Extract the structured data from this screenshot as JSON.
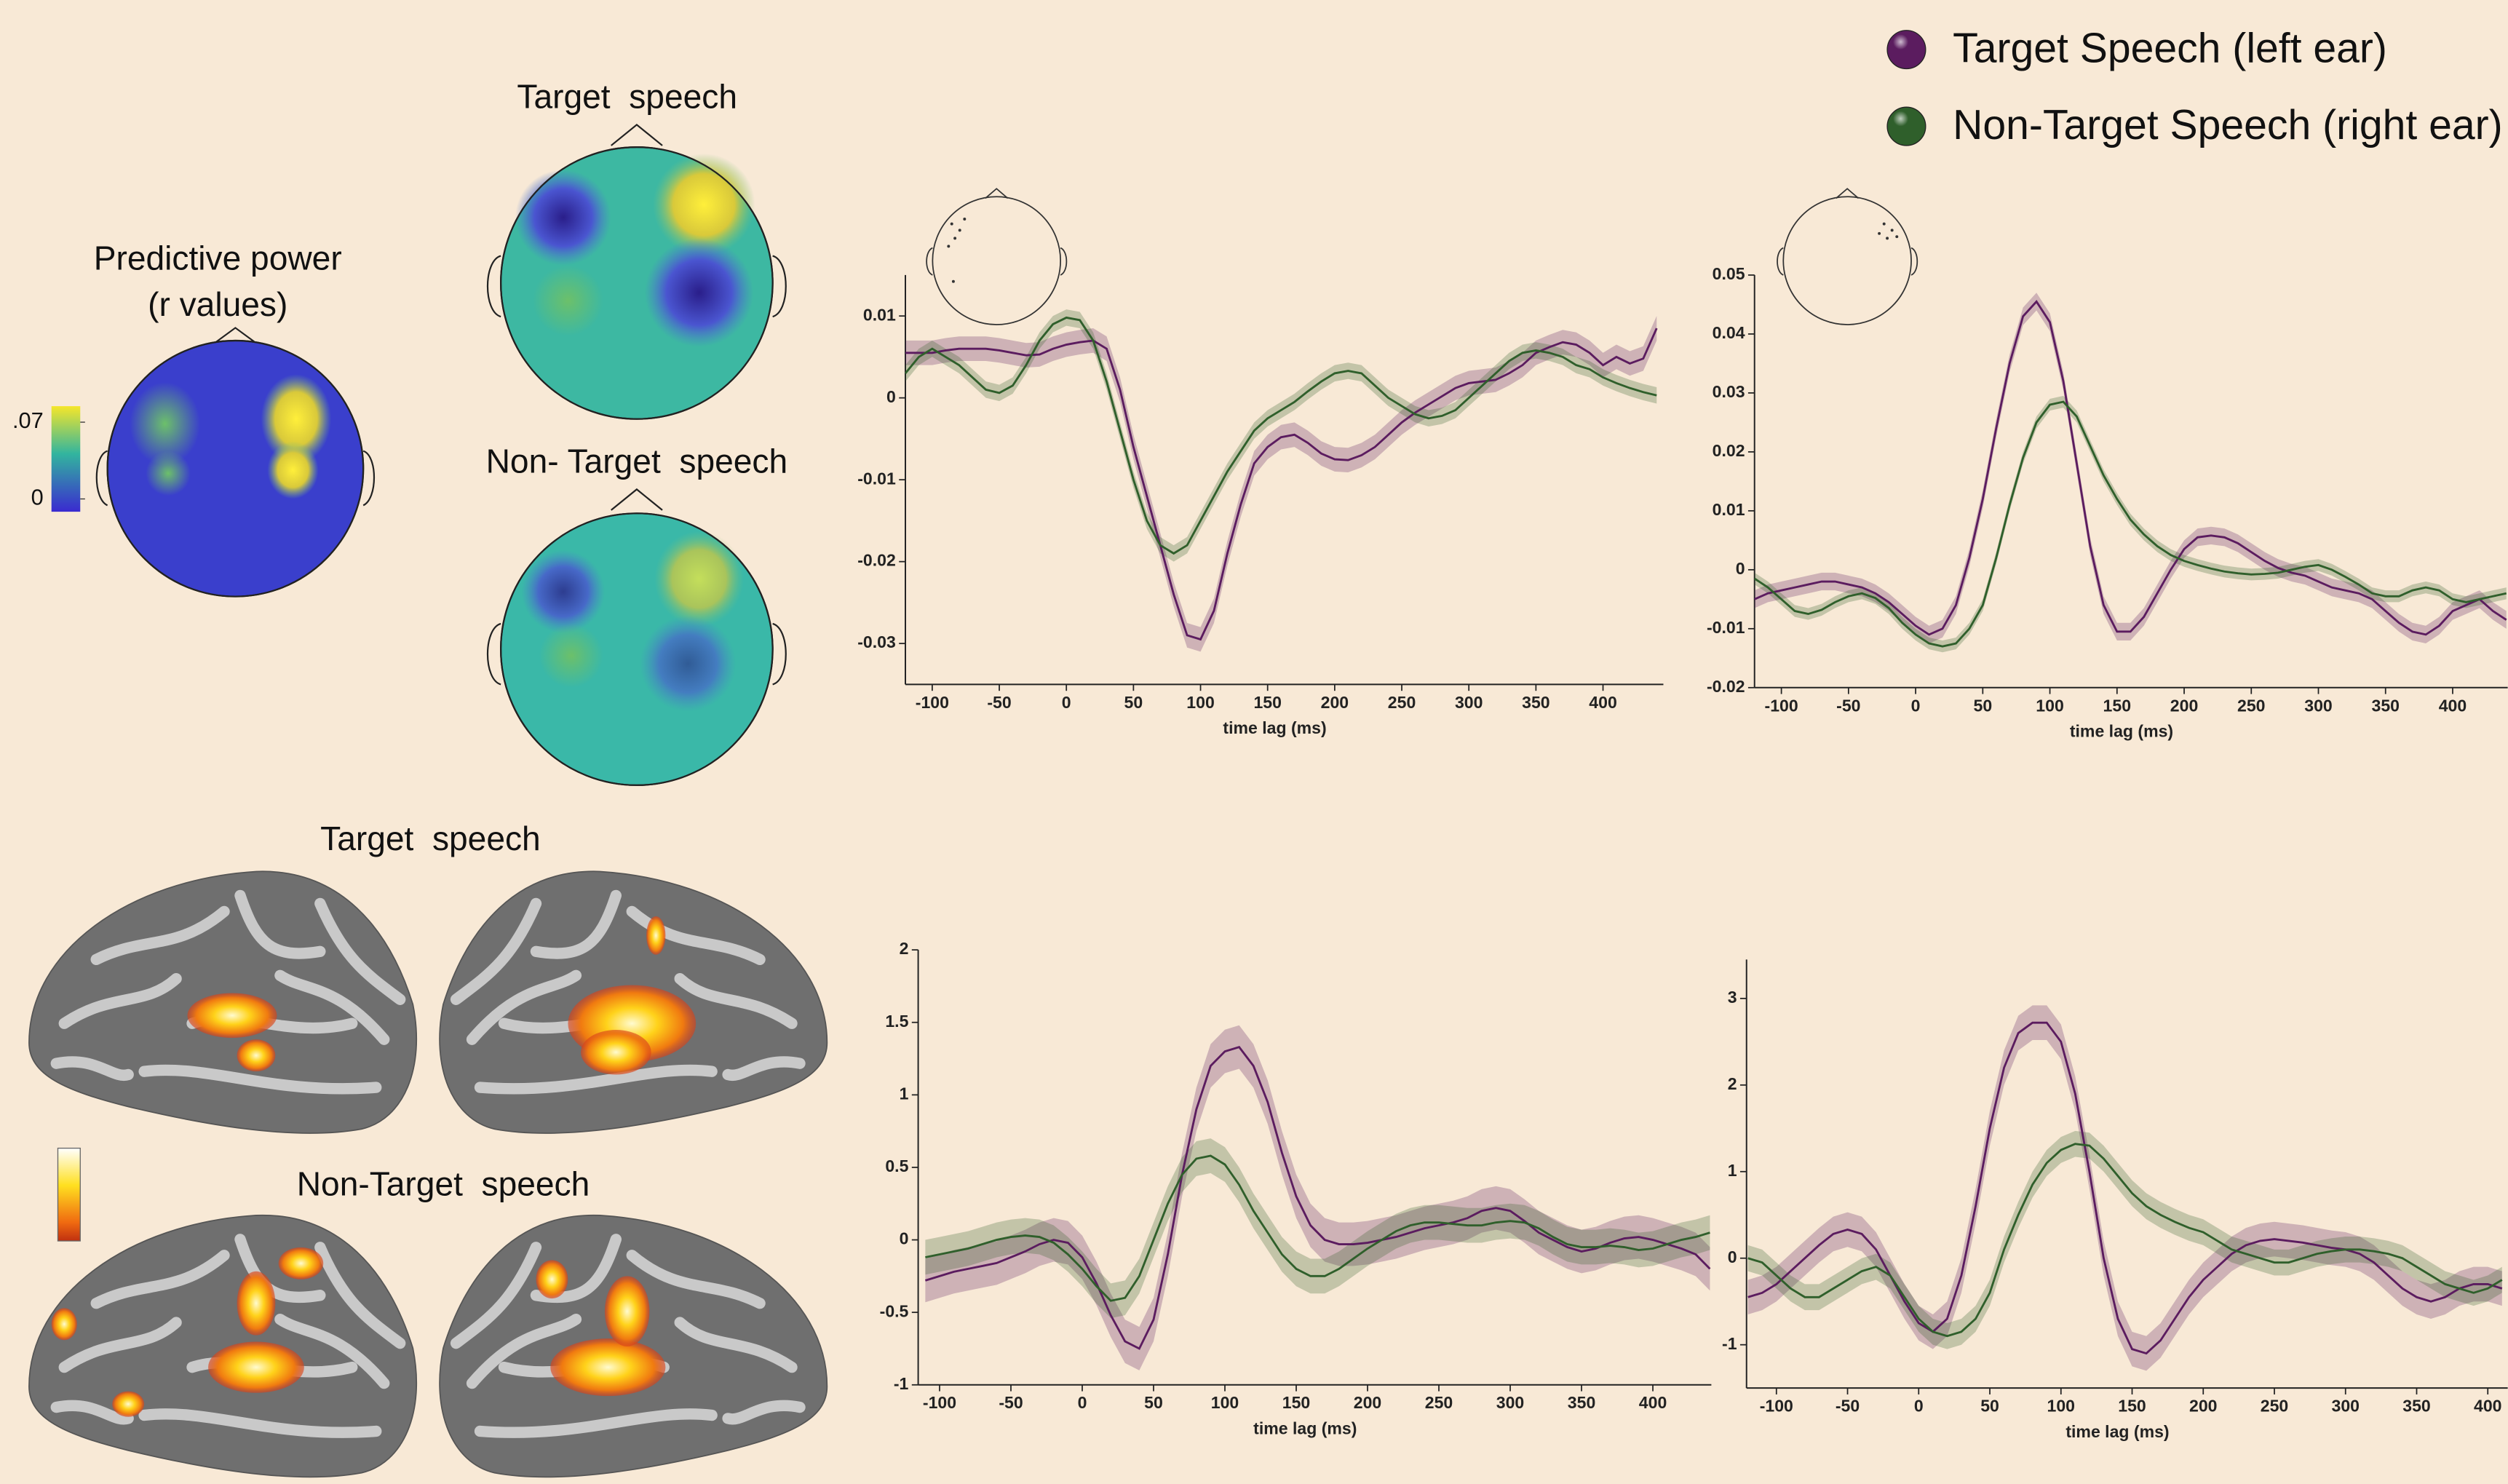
{
  "legend_position": "upper right",
  "topoplot": {
    "title": [
      "Predictive power",
      "(r values)"
    ],
    "clim": [
      0,
      0.07
    ],
    "colorbar_ticks": [
      {
        "value": 0.07,
        "label": ".07"
      },
      0
    ],
    "panels": [
      "Target  speech",
      "Non- Target  speech"
    ]
  },
  "brain_maps": {
    "panels": [
      "Target  speech",
      "Non-Target  speech"
    ]
  },
  "chart_data": [
    {
      "type": "line",
      "xlabel": "time lag (ms)",
      "xlim": [
        -120,
        445
      ],
      "ylim": [
        -0.035,
        0.015
      ],
      "xticks": [
        -100,
        -50,
        0,
        50,
        100,
        150,
        200,
        250,
        300,
        350,
        400
      ],
      "yticks": [
        0.01,
        0,
        -0.01,
        -0.02,
        -0.03
      ],
      "x": [
        -120,
        -110,
        -100,
        -90,
        -80,
        -70,
        -60,
        -50,
        -40,
        -30,
        -20,
        -10,
        0,
        10,
        20,
        30,
        40,
        50,
        60,
        70,
        80,
        90,
        100,
        110,
        120,
        130,
        140,
        150,
        160,
        170,
        180,
        190,
        200,
        210,
        220,
        230,
        240,
        250,
        260,
        270,
        280,
        290,
        300,
        310,
        320,
        330,
        340,
        350,
        360,
        370,
        380,
        390,
        400,
        410,
        420,
        430,
        440
      ],
      "series": [
        {
          "name": "Target Speech (left ear)",
          "color": "#5b1c5f",
          "error": 0.0015,
          "values": [
            0.0055,
            0.0055,
            0.0055,
            0.0058,
            0.006,
            0.006,
            0.006,
            0.0058,
            0.0055,
            0.0052,
            0.0053,
            0.006,
            0.0065,
            0.0068,
            0.007,
            0.006,
            0.001,
            -0.006,
            -0.012,
            -0.018,
            -0.024,
            -0.029,
            -0.0295,
            -0.026,
            -0.019,
            -0.013,
            -0.008,
            -0.006,
            -0.0048,
            -0.0045,
            -0.0055,
            -0.0068,
            -0.0075,
            -0.0076,
            -0.007,
            -0.006,
            -0.0045,
            -0.003,
            -0.0018,
            -0.0008,
            0.0002,
            0.0012,
            0.0018,
            0.002,
            0.0022,
            0.003,
            0.004,
            0.0055,
            0.0062,
            0.0068,
            0.0065,
            0.0055,
            0.004,
            0.005,
            0.0042,
            0.0048,
            0.0085
          ]
        },
        {
          "name": "Non-Target Speech (right ear)",
          "color": "#2f5f2b",
          "error": 0.001,
          "values": [
            0.003,
            0.005,
            0.006,
            0.005,
            0.004,
            0.0025,
            0.001,
            0.0006,
            0.0015,
            0.004,
            0.007,
            0.009,
            0.0098,
            0.0095,
            0.007,
            0.002,
            -0.004,
            -0.01,
            -0.015,
            -0.018,
            -0.019,
            -0.018,
            -0.015,
            -0.012,
            -0.009,
            -0.0065,
            -0.004,
            -0.0025,
            -0.0015,
            -0.0005,
            0.0008,
            0.002,
            0.003,
            0.0033,
            0.003,
            0.0015,
            0,
            -0.001,
            -0.002,
            -0.0025,
            -0.0022,
            -0.0015,
            0,
            0.0015,
            0.003,
            0.0045,
            0.0055,
            0.0058,
            0.0055,
            0.005,
            0.004,
            0.0035,
            0.0025,
            0.0018,
            0.0012,
            0.0007,
            0.0003
          ]
        }
      ]
    },
    {
      "type": "line",
      "xlabel": "time lag (ms)",
      "xlim": [
        -120,
        441
      ],
      "ylim": [
        -0.02,
        0.05
      ],
      "xticks": [
        -100,
        -50,
        0,
        50,
        100,
        150,
        200,
        250,
        300,
        350,
        400
      ],
      "yticks": [
        0.05,
        0.04,
        0.03,
        0.02,
        0.01,
        0,
        -0.01,
        -0.02
      ],
      "x": [
        -120,
        -110,
        -100,
        -90,
        -80,
        -70,
        -60,
        -50,
        -40,
        -30,
        -20,
        -10,
        0,
        10,
        20,
        30,
        40,
        50,
        60,
        70,
        80,
        90,
        100,
        110,
        120,
        130,
        140,
        150,
        160,
        170,
        180,
        190,
        200,
        210,
        220,
        230,
        240,
        250,
        260,
        270,
        280,
        290,
        300,
        310,
        320,
        330,
        340,
        350,
        360,
        370,
        380,
        390,
        400,
        410,
        420,
        430,
        440
      ],
      "series": [
        {
          "color": "#5b1c5f",
          "error": 0.0015,
          "values": [
            -0.005,
            -0.004,
            -0.0035,
            -0.003,
            -0.0025,
            -0.002,
            -0.002,
            -0.0025,
            -0.003,
            -0.004,
            -0.0055,
            -0.0075,
            -0.0095,
            -0.011,
            -0.01,
            -0.006,
            0.002,
            0.012,
            0.024,
            0.035,
            0.043,
            0.0455,
            0.042,
            0.032,
            0.018,
            0.004,
            -0.006,
            -0.0105,
            -0.0105,
            -0.008,
            -0.004,
            0,
            0.0035,
            0.0055,
            0.0058,
            0.0055,
            0.0045,
            0.003,
            0.0015,
            0.0003,
            -0.0005,
            -0.001,
            -0.002,
            -0.003,
            -0.0035,
            -0.004,
            -0.005,
            -0.007,
            -0.009,
            -0.0105,
            -0.011,
            -0.0095,
            -0.007,
            -0.006,
            -0.005,
            -0.007,
            -0.0085
          ]
        },
        {
          "color": "#2f5f2b",
          "error": 0.001,
          "values": [
            -0.0015,
            -0.003,
            -0.005,
            -0.007,
            -0.0075,
            -0.0068,
            -0.0055,
            -0.0045,
            -0.004,
            -0.0048,
            -0.0065,
            -0.009,
            -0.011,
            -0.0125,
            -0.013,
            -0.0125,
            -0.01,
            -0.006,
            0.002,
            0.011,
            0.019,
            0.025,
            0.028,
            0.0285,
            0.026,
            0.021,
            0.016,
            0.012,
            0.0085,
            0.006,
            0.004,
            0.0025,
            0.0015,
            0.0008,
            0.0002,
            -0.0003,
            -0.0006,
            -0.0008,
            -0.0007,
            -0.0005,
            0,
            0.0005,
            0.0008,
            0,
            -0.0012,
            -0.0025,
            -0.004,
            -0.0045,
            -0.0045,
            -0.0035,
            -0.003,
            -0.0035,
            -0.005,
            -0.0055,
            -0.005,
            -0.0045,
            -0.004
          ]
        }
      ]
    },
    {
      "type": "line",
      "xlabel": "time lag (ms)",
      "xlim": [
        -115,
        441
      ],
      "ylim": [
        -1,
        2
      ],
      "xticks": [
        -100,
        -50,
        0,
        50,
        100,
        150,
        200,
        250,
        300,
        350,
        400
      ],
      "yticks": [
        2,
        1.5,
        1,
        0.5,
        0,
        -0.5,
        -1
      ],
      "x": [
        -110,
        -100,
        -90,
        -80,
        -70,
        -60,
        -50,
        -40,
        -30,
        -20,
        -10,
        0,
        10,
        20,
        30,
        40,
        50,
        60,
        70,
        80,
        90,
        100,
        110,
        120,
        130,
        140,
        150,
        160,
        170,
        180,
        190,
        200,
        210,
        220,
        230,
        240,
        250,
        260,
        270,
        280,
        290,
        300,
        310,
        320,
        330,
        340,
        350,
        360,
        370,
        380,
        390,
        400,
        410,
        420,
        430,
        440
      ],
      "series": [
        {
          "color": "#5b1c5f",
          "error": 0.15,
          "values": [
            -0.28,
            -0.25,
            -0.22,
            -0.2,
            -0.18,
            -0.16,
            -0.12,
            -0.08,
            -0.03,
            0,
            -0.02,
            -0.12,
            -0.3,
            -0.52,
            -0.7,
            -0.75,
            -0.55,
            -0.1,
            0.45,
            0.9,
            1.2,
            1.3,
            1.33,
            1.2,
            0.95,
            0.6,
            0.3,
            0.1,
            0,
            -0.03,
            -0.03,
            -0.02,
            0,
            0.02,
            0.05,
            0.08,
            0.1,
            0.12,
            0.15,
            0.2,
            0.22,
            0.2,
            0.13,
            0.05,
            0,
            -0.05,
            -0.08,
            -0.06,
            -0.02,
            0.01,
            0.02,
            0,
            -0.03,
            -0.06,
            -0.1,
            -0.2
          ]
        },
        {
          "color": "#2f5f2b",
          "error": 0.12,
          "values": [
            -0.12,
            -0.1,
            -0.08,
            -0.06,
            -0.03,
            0,
            0.02,
            0.03,
            0.02,
            -0.02,
            -0.1,
            -0.2,
            -0.32,
            -0.42,
            -0.4,
            -0.25,
            0,
            0.25,
            0.45,
            0.56,
            0.58,
            0.52,
            0.38,
            0.2,
            0.05,
            -0.1,
            -0.2,
            -0.25,
            -0.25,
            -0.2,
            -0.13,
            -0.06,
            0,
            0.06,
            0.1,
            0.12,
            0.12,
            0.11,
            0.1,
            0.1,
            0.12,
            0.13,
            0.12,
            0.08,
            0.02,
            -0.03,
            -0.05,
            -0.05,
            -0.04,
            -0.05,
            -0.07,
            -0.06,
            -0.03,
            0,
            0.02,
            0.05
          ]
        }
      ]
    },
    {
      "type": "line",
      "xlabel": "time lag (ms)",
      "xlim": [
        -121,
        414
      ],
      "ylim": [
        -1.5,
        3.45
      ],
      "xticks": [
        -100,
        -50,
        0,
        50,
        100,
        150,
        200,
        250,
        300,
        350,
        400
      ],
      "yticks": [
        3,
        2,
        1,
        0,
        -1
      ],
      "x": [
        -120,
        -110,
        -100,
        -90,
        -80,
        -70,
        -60,
        -50,
        -40,
        -30,
        -20,
        -10,
        0,
        10,
        20,
        30,
        40,
        50,
        60,
        70,
        80,
        90,
        100,
        110,
        120,
        130,
        140,
        150,
        160,
        170,
        180,
        190,
        200,
        210,
        220,
        230,
        240,
        250,
        260,
        270,
        280,
        290,
        300,
        310,
        320,
        330,
        340,
        350,
        360,
        370,
        380,
        390,
        400,
        410
      ],
      "series": [
        {
          "color": "#5b1c5f",
          "error": 0.2,
          "values": [
            -0.45,
            -0.4,
            -0.3,
            -0.15,
            0,
            0.15,
            0.28,
            0.33,
            0.28,
            0.1,
            -0.2,
            -0.5,
            -0.75,
            -0.85,
            -0.7,
            -0.2,
            0.6,
            1.5,
            2.2,
            2.6,
            2.72,
            2.72,
            2.5,
            1.9,
            1,
            0,
            -0.7,
            -1.05,
            -1.1,
            -0.95,
            -0.7,
            -0.45,
            -0.25,
            -0.1,
            0.05,
            0.15,
            0.2,
            0.22,
            0.2,
            0.18,
            0.15,
            0.12,
            0.1,
            0.05,
            -0.05,
            -0.2,
            -0.35,
            -0.45,
            -0.5,
            -0.45,
            -0.35,
            -0.3,
            -0.3,
            -0.35
          ]
        },
        {
          "color": "#2f5f2b",
          "error": 0.15,
          "values": [
            0,
            -0.05,
            -0.2,
            -0.35,
            -0.45,
            -0.45,
            -0.35,
            -0.25,
            -0.15,
            -0.1,
            -0.2,
            -0.45,
            -0.7,
            -0.85,
            -0.9,
            -0.85,
            -0.7,
            -0.4,
            0.1,
            0.5,
            0.85,
            1.1,
            1.25,
            1.32,
            1.3,
            1.15,
            0.95,
            0.75,
            0.6,
            0.5,
            0.42,
            0.35,
            0.3,
            0.2,
            0.1,
            0.05,
            0,
            -0.05,
            -0.05,
            0,
            0.05,
            0.08,
            0.1,
            0.1,
            0.08,
            0.05,
            0,
            -0.1,
            -0.2,
            -0.3,
            -0.35,
            -0.4,
            -0.35,
            -0.25
          ]
        }
      ]
    }
  ]
}
